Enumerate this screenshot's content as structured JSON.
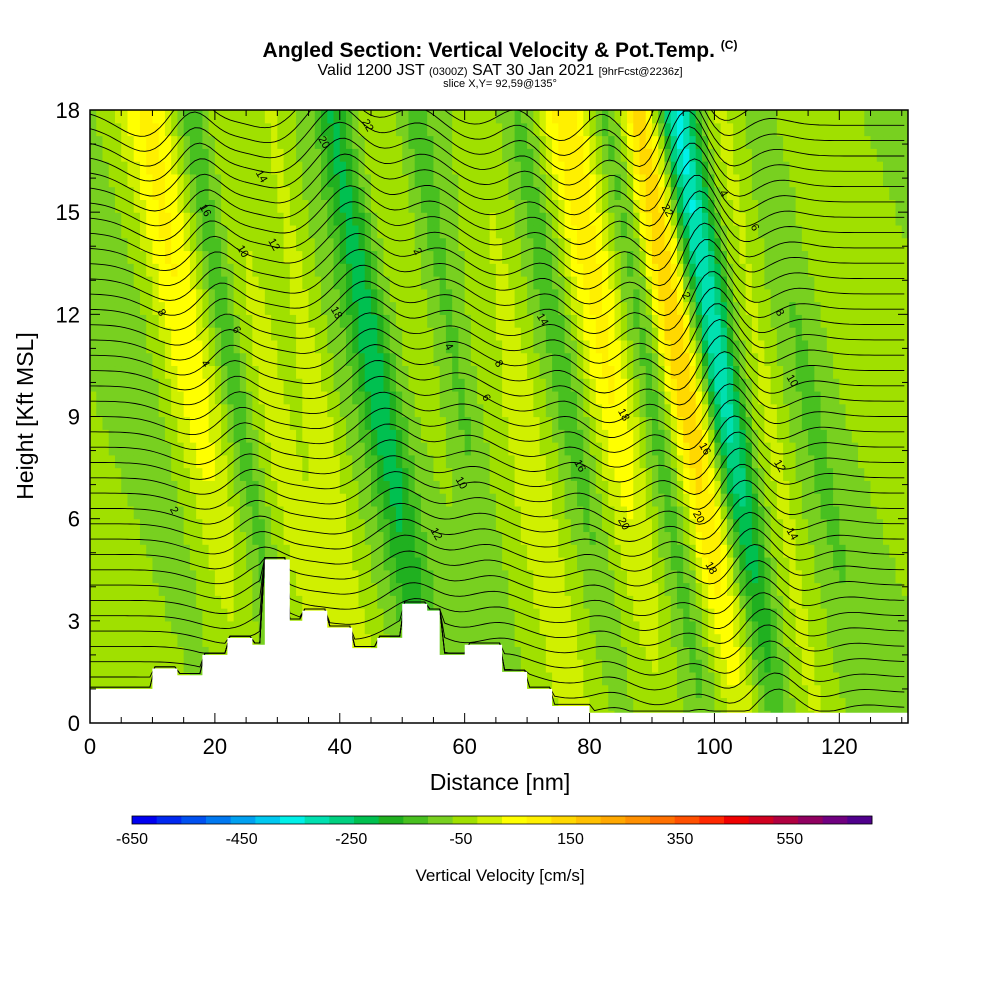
{
  "chart_data": {
    "type": "heatmap",
    "title": "Angled Section: Vertical Velocity & Pot.Temp.",
    "title_unit": "(C)",
    "subtitle": {
      "valid": "Valid 1200 JST",
      "utc": "(0300Z)",
      "date": "SAT 30 Jan 2021",
      "forecast": "[9hrFcst@2236z]"
    },
    "slice_info": "slice X,Y= 92,59@135°",
    "xlabel": "Distance [nm]",
    "ylabel": "Height [Kft MSL]",
    "xlim": [
      0,
      131
    ],
    "ylim": [
      0,
      18
    ],
    "x_ticks": [
      "0",
      "20",
      "40",
      "60",
      "80",
      "100",
      "120"
    ],
    "y_ticks": [
      "0",
      "3",
      "6",
      "9",
      "12",
      "15",
      "18"
    ],
    "colorbar": {
      "label": "Vertical Velocity [cm/s]",
      "tick_labels": [
        "-650",
        "-450",
        "-250",
        "-50",
        "150",
        "350",
        "550"
      ],
      "min": -650,
      "max": 700,
      "step": 50,
      "colors": [
        "#0000f0",
        "#0028f0",
        "#0050f0",
        "#0078f0",
        "#00a0f0",
        "#00c8f0",
        "#00f0e8",
        "#00e0b0",
        "#00d080",
        "#00c050",
        "#20b020",
        "#48c020",
        "#78d020",
        "#a0e000",
        "#d0f000",
        "#ffff00",
        "#fff000",
        "#ffd800",
        "#ffc000",
        "#ffa800",
        "#ff9000",
        "#ff7000",
        "#ff5000",
        "#ff2800",
        "#f00000",
        "#d00020",
        "#b00040",
        "#900060",
        "#700080",
        "#50008c"
      ]
    },
    "contour_labels": [
      "2",
      "4",
      "6",
      "8",
      "10",
      "12",
      "14",
      "16",
      "18",
      "20",
      "22"
    ],
    "terrain_profile_kft": [
      [
        0,
        1.0
      ],
      [
        10,
        1.6
      ],
      [
        14,
        1.4
      ],
      [
        18,
        2.0
      ],
      [
        22,
        2.5
      ],
      [
        26,
        2.3
      ],
      [
        28,
        4.8
      ],
      [
        30,
        4.8
      ],
      [
        32,
        3.0
      ],
      [
        34,
        3.3
      ],
      [
        38,
        2.8
      ],
      [
        42,
        2.2
      ],
      [
        46,
        2.5
      ],
      [
        50,
        3.5
      ],
      [
        54,
        3.3
      ],
      [
        56,
        2.0
      ],
      [
        60,
        2.3
      ],
      [
        66,
        1.5
      ],
      [
        70,
        1.0
      ],
      [
        74,
        0.5
      ],
      [
        80,
        0.3
      ],
      [
        131,
        0.3
      ]
    ]
  }
}
